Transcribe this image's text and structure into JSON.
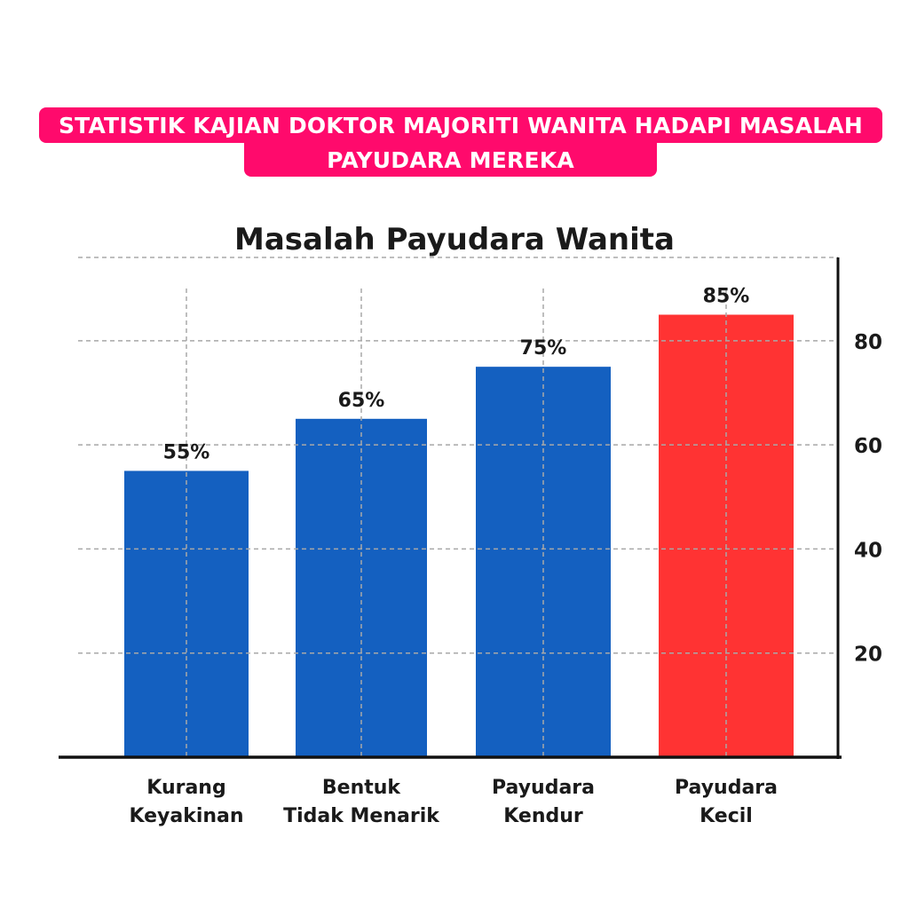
{
  "banner": {
    "line1": "STATISTIK KAJIAN DOKTOR MAJORITI WANITA HADAPI MASALAH",
    "line2": "PAYUDARA MEREKA",
    "color": "#ff0a6c"
  },
  "chart_data": {
    "type": "bar",
    "title": "Masalah Payudara Wanita",
    "xlabel": "",
    "ylabel": "",
    "categories": [
      [
        "Kurang",
        "Keyakinan"
      ],
      [
        "Bentuk",
        "Tidak Menarik"
      ],
      [
        "Payudara",
        "Kendur"
      ],
      [
        "Payudara",
        "Kecil"
      ]
    ],
    "values": [
      55,
      65,
      75,
      85
    ],
    "data_labels": [
      "55%",
      "65%",
      "75%",
      "85%"
    ],
    "bar_colors": [
      "#1460c0",
      "#1460c0",
      "#1460c0",
      "#ff3333"
    ],
    "y_ticks": [
      20,
      40,
      60,
      80
    ],
    "ylim": [
      0,
      96
    ],
    "y_axis_side": "right",
    "grid": true
  }
}
